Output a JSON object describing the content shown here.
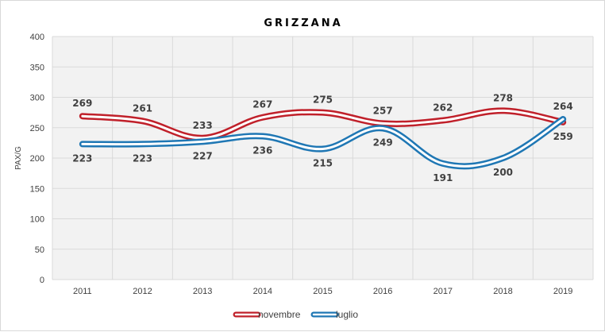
{
  "chart_data": {
    "type": "line",
    "title": "GRIZZANA",
    "xlabel": "",
    "ylabel": "PAX/G",
    "categories": [
      "2011",
      "2012",
      "2013",
      "2014",
      "2015",
      "2016",
      "2017",
      "2018",
      "2019"
    ],
    "ylim": [
      0,
      400
    ],
    "yticks": [
      0,
      50,
      100,
      150,
      200,
      250,
      300,
      350,
      400
    ],
    "grid": true,
    "legend_position": "bottom",
    "smooth": true,
    "series": [
      {
        "name": "novembre",
        "color": "#c0202a",
        "values": [
          269,
          261,
          233,
          267,
          275,
          257,
          262,
          278,
          259
        ]
      },
      {
        "name": "luglio",
        "color": "#1f77b4",
        "values": [
          223,
          223,
          227,
          236,
          215,
          249,
          191,
          200,
          264
        ]
      }
    ]
  }
}
